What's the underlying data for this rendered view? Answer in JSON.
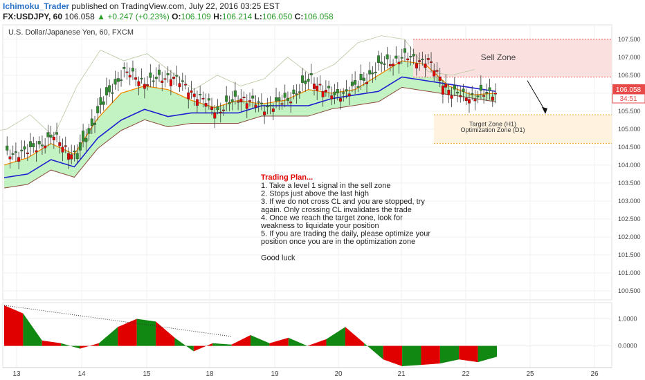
{
  "header": {
    "author": "Ichimoku_Trader",
    "published_text": "published on TradingView.com, July 22, 2016 03:25 EST",
    "symbol": "FX:USDJPY, 60",
    "last": "106.058",
    "change": "+0.247 (+0.23%)",
    "open_label": "O:",
    "open": "106.109",
    "high_label": "H:",
    "high": "106.214",
    "low_label": "L:",
    "low": "106.050",
    "close_label": "C:",
    "close": "106.058"
  },
  "chart_data": {
    "type": "line",
    "title": "U.S. Dollar/Japanese Yen, 60, FXCM",
    "x_ticks": [
      "13",
      "14",
      "15",
      "18",
      "19",
      "20",
      "21",
      "22",
      "25",
      "26"
    ],
    "y_ticks": [
      "107.500",
      "107.000",
      "106.500",
      "106.000",
      "105.500",
      "105.000",
      "104.500",
      "104.000",
      "103.500",
      "103.000",
      "102.500",
      "102.000",
      "101.500",
      "101.000",
      "100.500"
    ],
    "ylim": [
      100.25,
      107.9
    ],
    "last_price_label": "106.058",
    "countdown_label": "34:51",
    "series": [
      {
        "name": "",
        "x": [
          0,
          3,
          6,
          9,
          12,
          15,
          18,
          21,
          24,
          27,
          30,
          33,
          36,
          39,
          42,
          45,
          48,
          51,
          54,
          57,
          60,
          63
        ],
        "values": [
          104.3,
          104.4,
          104.8,
          104.2,
          105.6,
          106.6,
          106.3,
          106.5,
          106.0,
          105.5,
          105.9,
          105.6,
          105.8,
          106.4,
          105.9,
          106.2,
          106.8,
          107.0,
          106.9,
          106.0,
          105.9,
          106.06
        ]
      },
      {
        "name": "",
        "x": [
          0,
          3,
          6,
          9,
          12,
          15,
          18,
          21,
          24,
          27,
          30,
          33,
          36,
          39,
          42,
          45,
          48,
          51,
          54,
          57,
          60,
          63
        ],
        "values": [
          104.0,
          104.2,
          104.6,
          104.3,
          105.3,
          106.0,
          106.2,
          106.1,
          105.8,
          105.6,
          105.8,
          105.7,
          105.8,
          106.1,
          106.0,
          106.1,
          106.5,
          106.9,
          106.8,
          106.2,
          105.95,
          106.0
        ]
      },
      {
        "name": "",
        "x": [
          0,
          3,
          6,
          9,
          12,
          15,
          18,
          21,
          24,
          27,
          30,
          33,
          36,
          39,
          42,
          45,
          48,
          51,
          54,
          57,
          60,
          63
        ],
        "values": [
          103.9,
          104.0,
          104.4,
          104.2,
          105.0,
          105.5,
          105.8,
          105.6,
          105.7,
          105.7,
          105.7,
          105.9,
          105.9,
          105.9,
          106.1,
          106.2,
          106.3,
          106.7,
          106.6,
          106.5,
          106.4,
          106.3
        ]
      }
    ],
    "annotations": {
      "sell_zone": "Sell Zone",
      "target_zone": "Target Zone (H1)",
      "optimization_zone": "Optimization Zone (D1)",
      "plan_title": "Trading Plan...",
      "plan_lines": [
        "1. Take a level 1 signal in the sell zone",
        "2. Stops just above the last high",
        "3. If we do not cross CL and you are stopped, try",
        "again. Only crossing CL invalidates the trade",
        "4. Once we reach the target zone, look for",
        "weakness to liquidate your position",
        "5. If you are trading the daily, please optimize your",
        "position once you are in the optimization zone",
        "",
        "Good luck"
      ]
    },
    "oscillator": {
      "y_ticks": [
        "1.0000",
        "0.0000"
      ],
      "ylim": [
        -0.8,
        1.6
      ],
      "x": [
        0,
        3,
        6,
        9,
        12,
        15,
        18,
        21,
        24,
        27,
        30,
        33,
        36,
        39,
        42,
        45,
        48,
        51,
        54,
        57,
        60,
        63,
        66,
        69,
        72,
        75,
        78
      ],
      "values": [
        1.5,
        1.2,
        0.2,
        0.1,
        -0.1,
        0.1,
        0.7,
        1.0,
        0.9,
        0.3,
        -0.2,
        0.1,
        0.05,
        0.4,
        0.1,
        0.3,
        0.0,
        0.25,
        0.7,
        0.1,
        -0.5,
        -0.75,
        -0.7,
        -0.65,
        -0.5,
        -0.6,
        -0.4
      ],
      "positive_color": "#e00000",
      "negative_color": "#118811"
    },
    "colors": {
      "price_up": "#2f8f2f",
      "price_down": "#e00000",
      "kijun": "#1f1fd0",
      "tenkan": "#f08a00",
      "cloud": "#b8f0b8",
      "sell_zone": "#fbe0e0",
      "target_zone": "#fff3e0"
    },
    "grid": true
  }
}
